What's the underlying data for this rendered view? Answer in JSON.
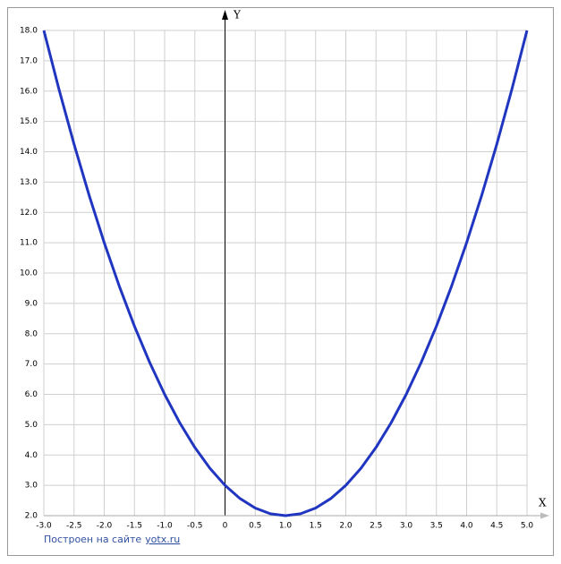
{
  "chart_data": {
    "type": "line",
    "x_label": "X",
    "y_label": "Y",
    "x": [
      -3,
      -2.75,
      -2.5,
      -2.25,
      -2,
      -1.75,
      -1.5,
      -1.25,
      -1,
      -0.75,
      -0.5,
      -0.25,
      0,
      0.25,
      0.5,
      0.75,
      1,
      1.25,
      1.5,
      1.75,
      2,
      2.25,
      2.5,
      2.75,
      3,
      3.25,
      3.5,
      3.75,
      4,
      4.25,
      4.5,
      4.75,
      5
    ],
    "series": [
      {
        "color": "#2035c0",
        "values": [
          18,
          16.0625,
          14.25,
          12.5625,
          11,
          9.5625,
          8.25,
          7.0625,
          6,
          5.0625,
          4.25,
          3.5625,
          3,
          2.5625,
          2.25,
          2.0625,
          2,
          2.0625,
          2.25,
          2.5625,
          3,
          3.5625,
          4.25,
          5.0625,
          6,
          7.0625,
          8.25,
          9.5625,
          11,
          12.5625,
          14.25,
          16.0625,
          18
        ]
      }
    ],
    "xlim": [
      -3,
      5
    ],
    "ylim": [
      2,
      18
    ],
    "xticks": [
      {
        "value": -3,
        "label": "-3.0"
      },
      -2.5,
      {
        "value": -2,
        "label": "-2.0"
      },
      -1.5,
      {
        "value": -1,
        "label": "-1.0"
      },
      -0.5,
      0,
      0.5,
      {
        "value": 1,
        "label": "1.0"
      },
      1.5,
      {
        "value": 2,
        "label": "2.0"
      },
      2.5,
      {
        "value": 3,
        "label": "3.0"
      },
      3.5,
      {
        "value": 4,
        "label": "4.0"
      },
      4.5,
      {
        "value": 5,
        "label": "5.0"
      }
    ],
    "yticks": [
      {
        "value": 2,
        "label": "2.0"
      },
      {
        "value": 3,
        "label": "3.0"
      },
      {
        "value": 4,
        "label": "4.0"
      },
      {
        "value": 5,
        "label": "5.0"
      },
      {
        "value": 6,
        "label": "6.0"
      },
      {
        "value": 7,
        "label": "7.0"
      },
      {
        "value": 8,
        "label": "8.0"
      },
      {
        "value": 9,
        "label": "9.0"
      },
      {
        "value": 10,
        "label": "10.0"
      },
      {
        "value": 11,
        "label": "11.0"
      },
      {
        "value": 12,
        "label": "12.0"
      },
      {
        "value": 13,
        "label": "13.0"
      },
      {
        "value": 14,
        "label": "14.0"
      },
      {
        "value": 15,
        "label": "15.0"
      },
      {
        "value": 16,
        "label": "16.0"
      },
      {
        "value": 17,
        "label": "17.0"
      },
      {
        "value": 18,
        "label": "18.0"
      }
    ],
    "grid": true,
    "footer": {
      "text": "Построен на сайте",
      "link": "yotx.ru"
    }
  }
}
